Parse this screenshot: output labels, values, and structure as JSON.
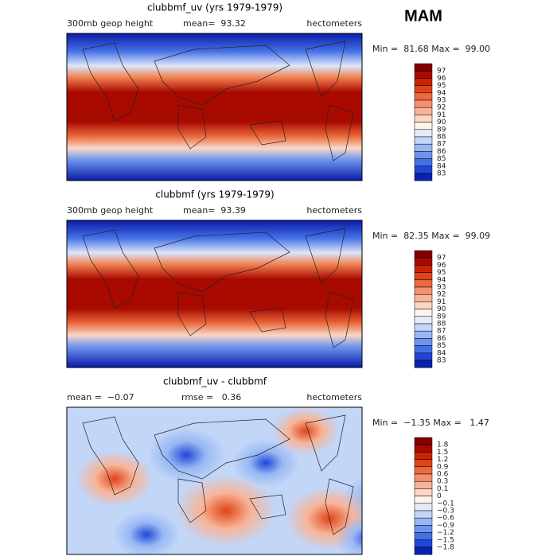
{
  "season": "MAM",
  "colors": [
    "#800000",
    "#a80a00",
    "#cc2200",
    "#e04418",
    "#ec6a3c",
    "#f49070",
    "#f8b498",
    "#fcd8c4",
    "#fff4ea",
    "#e2ecfa",
    "#c2d6f8",
    "#98b8f4",
    "#6c94ee",
    "#4470e6",
    "#2046d8",
    "#0a20b0"
  ],
  "panels": [
    {
      "title": "clubbmf_uv (yrs 1979-1979)",
      "left": "300mb geop height",
      "middle": "mean=  93.32",
      "units": "hectometers",
      "range": "Min =  81.68 Max =  99.00",
      "levels": [
        "97",
        "96",
        "95",
        "94",
        "93",
        "92",
        "91",
        "90",
        "89",
        "88",
        "87",
        "86",
        "85",
        "84",
        "83"
      ]
    },
    {
      "title": "clubbmf (yrs 1979-1979)",
      "left": "300mb geop height",
      "middle": "mean=  93.39",
      "units": "hectometers",
      "range": "Min =  82.35 Max =  99.09",
      "levels": [
        "97",
        "96",
        "95",
        "94",
        "93",
        "92",
        "91",
        "90",
        "89",
        "88",
        "87",
        "86",
        "85",
        "84",
        "83"
      ]
    },
    {
      "title": "clubbmf_uv - clubbmf",
      "left": "mean =  −0.07",
      "middle": "rmse =   0.36",
      "units": "hectometers",
      "range": "Min =  −1.35 Max =   1.47",
      "levels": [
        "1.8",
        "1.5",
        "1.2",
        "0.9",
        "0.6",
        "0.3",
        "0.1",
        "0",
        "−0.1",
        "−0.3",
        "−0.6",
        "−0.9",
        "−1.2",
        "−1.5",
        "−1.8"
      ]
    }
  ]
}
